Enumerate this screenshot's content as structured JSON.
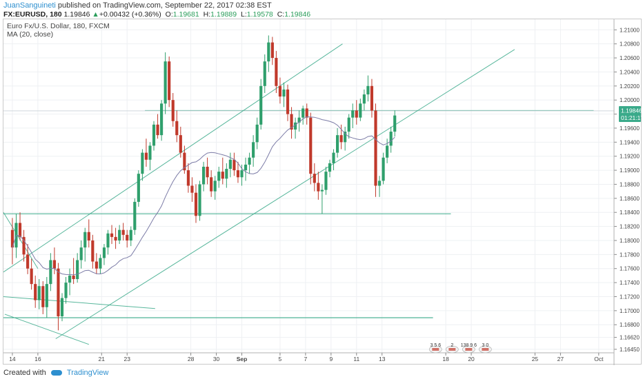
{
  "header": {
    "author": "JuanSanguineti",
    "published": "published on TradingView.com, September 22, 2017 02:38 EST"
  },
  "quote": {
    "symbol": "FX:EURUSD, 180",
    "last": "1.19846",
    "change": "+0.00432 (+0.36%)",
    "o_label": "O:",
    "o_value": "1.19681",
    "h_label": "H:",
    "h_value": "1.19889",
    "l_label": "L:",
    "l_value": "1.19578",
    "c_label": "C:",
    "c_value": "1.19846"
  },
  "legend": {
    "title": "Euro Fx/U.S. Dollar, 180, FXCM",
    "indicator": "MA (20, close)"
  },
  "price_badge": {
    "value": "1.19846",
    "countdown": "01:21:17"
  },
  "footer": {
    "created_with": "Created with",
    "brand": "TradingView"
  },
  "event_markers": [
    "3 5 6",
    "2",
    "138 9 6",
    "3 0"
  ],
  "colors": {
    "candle_up": "#2f9f6c",
    "candle_down": "#c0392b",
    "ma_line": "#7b7ba6",
    "drawing": "#3aaa8a",
    "price_badge": "#3aaa8a"
  },
  "chart_data": {
    "type": "candlestick",
    "title": "Euro Fx/U.S. Dollar, 180, FXCM",
    "y_ticks": [
      "1.21000",
      "1.20800",
      "1.20600",
      "1.20400",
      "1.20200",
      "1.20000",
      "1.19800",
      "1.19600",
      "1.19400",
      "1.19200",
      "1.19000",
      "1.18800",
      "1.18600",
      "1.18400",
      "1.18200",
      "1.18000",
      "1.17800",
      "1.17600",
      "1.17400",
      "1.17200",
      "1.17000",
      "1.16800",
      "1.16620",
      "1.16450"
    ],
    "x_ticks": [
      {
        "label": "14",
        "x": 14
      },
      {
        "label": "16",
        "x": 16
      },
      {
        "label": "21",
        "x": 21
      },
      {
        "label": "23",
        "x": 23
      },
      {
        "label": "28",
        "x": 28
      },
      {
        "label": "30",
        "x": 30
      },
      {
        "label": "Sep",
        "x": 32
      },
      {
        "label": "5",
        "x": 35
      },
      {
        "label": "7",
        "x": 37
      },
      {
        "label": "9",
        "x": 39
      },
      {
        "label": "11",
        "x": 41
      },
      {
        "label": "13",
        "x": 43
      },
      {
        "label": "18",
        "x": 48
      },
      {
        "label": "20",
        "x": 50
      },
      {
        "label": "25",
        "x": 55
      },
      {
        "label": "27",
        "x": 57
      },
      {
        "label": "Oct",
        "x": 60
      }
    ],
    "ylim": [
      1.164,
      1.2115
    ],
    "xlim": [
      13.3,
      61.2
    ],
    "support_resistance_levels": [
      1.1985,
      1.1838,
      1.169
    ],
    "trendlines": [
      {
        "from": [
          13.3,
          1.1755
        ],
        "to": [
          39.9,
          1.208
        ]
      },
      {
        "from": [
          17.4,
          1.166
        ],
        "to": [
          53.4,
          1.2072
        ]
      },
      {
        "from": [
          13.3,
          1.172
        ],
        "to": [
          25.2,
          1.1703
        ]
      },
      {
        "from": [
          13.4,
          1.1695
        ],
        "to": [
          20.0,
          1.1652
        ]
      },
      {
        "from": [
          13.3,
          1.184
        ],
        "to": [
          16.0,
          1.176
        ]
      }
    ],
    "last_price": 1.19846,
    "candles": [
      [
        14.0,
        1.1815,
        1.1832,
        1.1766,
        1.179
      ],
      [
        14.3,
        1.179,
        1.1838,
        1.1775,
        1.1825
      ],
      [
        14.6,
        1.1825,
        1.184,
        1.18,
        1.1805
      ],
      [
        14.9,
        1.1805,
        1.1815,
        1.177,
        1.178
      ],
      [
        15.2,
        1.178,
        1.1795,
        1.1752,
        1.176
      ],
      [
        15.5,
        1.176,
        1.1774,
        1.173,
        1.1738
      ],
      [
        15.8,
        1.1738,
        1.175,
        1.1704,
        1.1715
      ],
      [
        16.1,
        1.1715,
        1.1745,
        1.1702,
        1.1735
      ],
      [
        16.4,
        1.1735,
        1.1742,
        1.1695,
        1.1705
      ],
      [
        16.7,
        1.1705,
        1.1748,
        1.169,
        1.1738
      ],
      [
        17.0,
        1.1738,
        1.1782,
        1.1728,
        1.1772
      ],
      [
        17.3,
        1.1772,
        1.179,
        1.1752,
        1.176
      ],
      [
        17.6,
        1.176,
        1.1768,
        1.1672,
        1.1692
      ],
      [
        17.9,
        1.1692,
        1.1725,
        1.1685,
        1.1718
      ],
      [
        18.2,
        1.1718,
        1.1748,
        1.171,
        1.174
      ],
      [
        18.5,
        1.174,
        1.176,
        1.1722,
        1.175
      ],
      [
        18.8,
        1.175,
        1.1775,
        1.1738,
        1.1745
      ],
      [
        19.1,
        1.1745,
        1.1782,
        1.174,
        1.1772
      ],
      [
        19.4,
        1.1772,
        1.18,
        1.176,
        1.179
      ],
      [
        19.7,
        1.179,
        1.1818,
        1.177,
        1.1812
      ],
      [
        20.0,
        1.1812,
        1.183,
        1.179,
        1.18
      ],
      [
        20.3,
        1.18,
        1.1808,
        1.176,
        1.177
      ],
      [
        20.6,
        1.177,
        1.1782,
        1.1752,
        1.176
      ],
      [
        20.9,
        1.176,
        1.178,
        1.1752,
        1.1775
      ],
      [
        21.2,
        1.1775,
        1.1795,
        1.1765,
        1.179
      ],
      [
        21.5,
        1.179,
        1.1815,
        1.178,
        1.181
      ],
      [
        21.8,
        1.181,
        1.1822,
        1.1795,
        1.1805
      ],
      [
        22.1,
        1.1805,
        1.1818,
        1.1788,
        1.18
      ],
      [
        22.4,
        1.18,
        1.1822,
        1.1795,
        1.1815
      ],
      [
        22.7,
        1.1815,
        1.1825,
        1.18,
        1.1808
      ],
      [
        23.0,
        1.1808,
        1.1815,
        1.179,
        1.18
      ],
      [
        23.3,
        1.18,
        1.182,
        1.1792,
        1.1815
      ],
      [
        23.6,
        1.1815,
        1.186,
        1.1808,
        1.1855
      ],
      [
        23.9,
        1.1855,
        1.19,
        1.1848,
        1.1895
      ],
      [
        24.2,
        1.1895,
        1.193,
        1.1885,
        1.1925
      ],
      [
        24.5,
        1.1925,
        1.1945,
        1.1905,
        1.1915
      ],
      [
        24.8,
        1.1915,
        1.194,
        1.19,
        1.1935
      ],
      [
        25.1,
        1.1935,
        1.197,
        1.1928,
        1.1965
      ],
      [
        25.4,
        1.1965,
        1.198,
        1.1945,
        1.195
      ],
      [
        25.7,
        1.195,
        1.2,
        1.1942,
        1.1995
      ],
      [
        26.0,
        1.1995,
        1.2068,
        1.198,
        1.2055
      ],
      [
        26.3,
        1.2055,
        1.2062,
        1.199,
        1.2
      ],
      [
        26.6,
        1.2,
        1.201,
        1.1962,
        1.197
      ],
      [
        26.9,
        1.197,
        1.1985,
        1.194,
        1.195
      ],
      [
        27.2,
        1.195,
        1.1962,
        1.1918,
        1.1925
      ],
      [
        27.5,
        1.1925,
        1.1935,
        1.1895,
        1.19
      ],
      [
        27.8,
        1.19,
        1.191,
        1.1868,
        1.1878
      ],
      [
        28.1,
        1.1878,
        1.189,
        1.1855,
        1.1868
      ],
      [
        28.4,
        1.1868,
        1.188,
        1.1825,
        1.1835
      ],
      [
        28.7,
        1.1835,
        1.1885,
        1.1828,
        1.188
      ],
      [
        29.0,
        1.188,
        1.1912,
        1.187,
        1.1905
      ],
      [
        29.3,
        1.1905,
        1.1918,
        1.188,
        1.189
      ],
      [
        29.6,
        1.189,
        1.19,
        1.1862,
        1.187
      ],
      [
        29.9,
        1.187,
        1.1892,
        1.1858,
        1.1885
      ],
      [
        30.2,
        1.1885,
        1.1905,
        1.1875,
        1.1898
      ],
      [
        30.5,
        1.1898,
        1.1918,
        1.188,
        1.1888
      ],
      [
        30.8,
        1.1888,
        1.191,
        1.1875,
        1.1902
      ],
      [
        31.1,
        1.1902,
        1.1925,
        1.189,
        1.1915
      ],
      [
        31.4,
        1.1915,
        1.1925,
        1.1892,
        1.19
      ],
      [
        31.7,
        1.19,
        1.1912,
        1.1882,
        1.189
      ],
      [
        32.0,
        1.189,
        1.1908,
        1.1878,
        1.19
      ],
      [
        32.3,
        1.19,
        1.1918,
        1.1885,
        1.1908
      ],
      [
        32.6,
        1.1908,
        1.1925,
        1.1895,
        1.1918
      ],
      [
        32.9,
        1.1918,
        1.195,
        1.1905,
        1.194
      ],
      [
        33.2,
        1.194,
        1.1975,
        1.193,
        1.1965
      ],
      [
        33.5,
        1.1965,
        1.203,
        1.1958,
        1.202
      ],
      [
        33.8,
        1.202,
        1.2065,
        1.201,
        1.2055
      ],
      [
        34.1,
        1.2055,
        1.2092,
        1.204,
        1.2082
      ],
      [
        34.4,
        1.2082,
        1.209,
        1.205,
        1.206
      ],
      [
        34.7,
        1.206,
        1.207,
        1.201,
        1.202
      ],
      [
        35.0,
        1.202,
        1.2032,
        1.1995,
        1.2005
      ],
      [
        35.3,
        1.2005,
        1.2025,
        1.199,
        1.2015
      ],
      [
        35.6,
        1.2015,
        1.2022,
        1.197,
        1.198
      ],
      [
        35.9,
        1.198,
        1.199,
        1.1945,
        1.1958
      ],
      [
        36.2,
        1.1958,
        1.1975,
        1.1945,
        1.1968
      ],
      [
        36.5,
        1.1968,
        1.1985,
        1.1955,
        1.1975
      ],
      [
        36.8,
        1.1975,
        1.1992,
        1.1965,
        1.1988
      ],
      [
        37.1,
        1.1988,
        1.1995,
        1.1965,
        1.1975
      ],
      [
        37.4,
        1.1975,
        1.1982,
        1.188,
        1.1895
      ],
      [
        37.7,
        1.1895,
        1.191,
        1.187,
        1.1882
      ],
      [
        38.0,
        1.1882,
        1.1898,
        1.1858,
        1.187
      ],
      [
        38.3,
        1.187,
        1.188,
        1.1838,
        1.1872
      ],
      [
        38.6,
        1.1872,
        1.1905,
        1.1865,
        1.1898
      ],
      [
        38.9,
        1.1898,
        1.1915,
        1.189,
        1.191
      ],
      [
        39.2,
        1.191,
        1.193,
        1.19,
        1.1925
      ],
      [
        39.5,
        1.1925,
        1.196,
        1.1918,
        1.195
      ],
      [
        39.8,
        1.195,
        1.1965,
        1.193,
        1.194
      ],
      [
        40.1,
        1.194,
        1.1962,
        1.1928,
        1.1955
      ],
      [
        40.4,
        1.1955,
        1.198,
        1.1945,
        1.1975
      ],
      [
        40.7,
        1.1975,
        1.1995,
        1.196,
        1.1985
      ],
      [
        41.0,
        1.1985,
        1.2,
        1.1965,
        1.1975
      ],
      [
        41.3,
        1.1975,
        1.2002,
        1.197,
        1.1995
      ],
      [
        41.6,
        1.1995,
        1.2015,
        1.1985,
        1.2008
      ],
      [
        41.9,
        1.2008,
        1.2035,
        1.1998,
        1.202
      ],
      [
        42.2,
        1.202,
        1.203,
        1.1975,
        1.1985
      ],
      [
        42.5,
        1.1985,
        1.1995,
        1.1862,
        1.1878
      ],
      [
        42.8,
        1.1878,
        1.1892,
        1.1862,
        1.1885
      ],
      [
        43.1,
        1.1885,
        1.1925,
        1.188,
        1.1918
      ],
      [
        43.4,
        1.1918,
        1.1945,
        1.191,
        1.1935
      ],
      [
        43.7,
        1.1935,
        1.1962,
        1.1925,
        1.1955
      ],
      [
        44.0,
        1.1955,
        1.1985,
        1.1948,
        1.1978
      ]
    ]
  }
}
